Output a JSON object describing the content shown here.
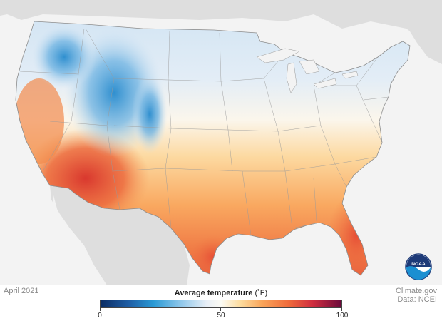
{
  "date_label": "April 2021",
  "credit": {
    "site": "Climate.gov",
    "data_source": "Data: NCEI"
  },
  "legend": {
    "title": "Average temperature",
    "unit": "(˚F)",
    "min_label": "0",
    "mid_label": "50",
    "max_label": "100",
    "scale_min": 0,
    "scale_max": 100,
    "colors": [
      "#0b2c63",
      "#2a9ad5",
      "#e7eef6",
      "#fbfaf3",
      "#f9a55a",
      "#cf2d3f",
      "#6b0a3b"
    ]
  },
  "logo": {
    "text": "NOAA",
    "icon": "noaa-logo"
  }
}
